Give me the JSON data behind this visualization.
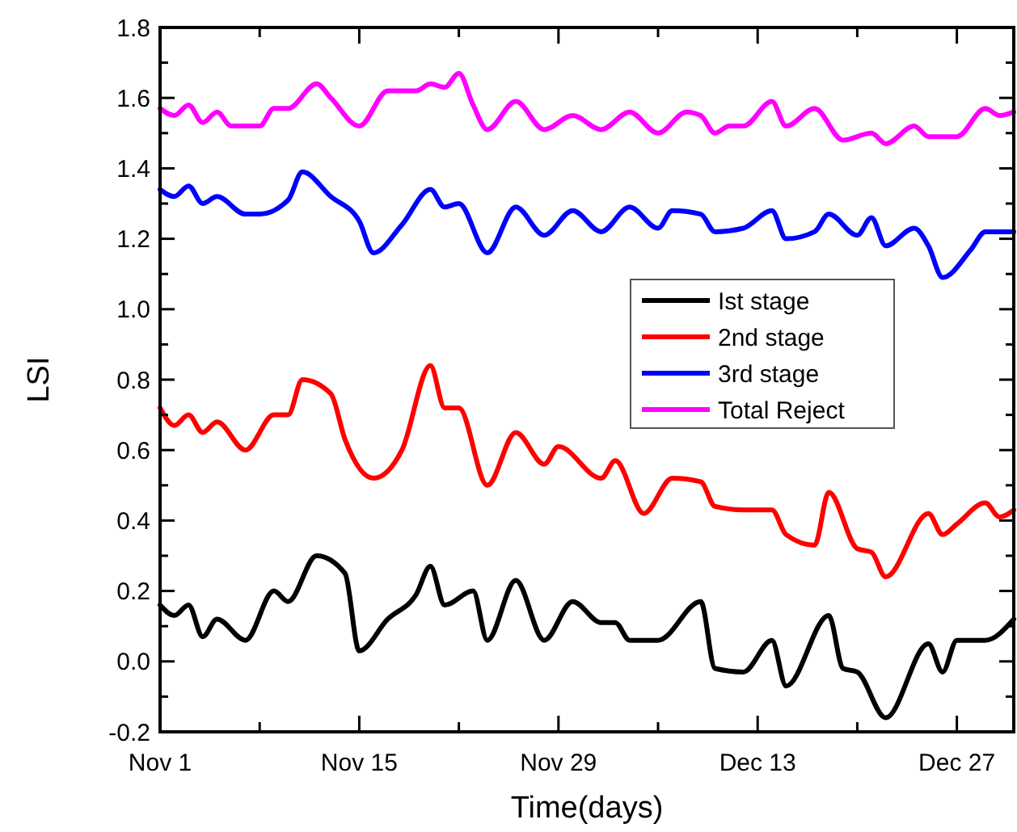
{
  "chart_data": {
    "type": "line",
    "xlabel": "Time(days)",
    "ylabel": "LSI",
    "xlim": [
      "--11-01",
      "--12-31"
    ],
    "xticks": [
      {
        "value": "--11-01",
        "label": "Nov 1"
      },
      {
        "value": "--11-08",
        "label": null
      },
      {
        "value": "--11-15",
        "label": "Nov 15"
      },
      {
        "value": "--11-22",
        "label": null
      },
      {
        "value": "--11-29",
        "label": "Nov 29"
      },
      {
        "value": "--12-06",
        "label": null
      },
      {
        "value": "--12-13",
        "label": "Dec 13"
      },
      {
        "value": "--12-20",
        "label": null
      },
      {
        "value": "--12-27",
        "label": "Dec 27"
      }
    ],
    "ylim": [
      -0.2,
      1.8
    ],
    "yticks": [
      {
        "value": -0.2,
        "label": "-0.2"
      },
      {
        "value": -0.1,
        "label": null
      },
      {
        "value": 0,
        "label": "0.0"
      },
      {
        "value": 0.1,
        "label": null
      },
      {
        "value": 0.2,
        "label": "0.2"
      },
      {
        "value": 0.3,
        "label": null
      },
      {
        "value": 0.4,
        "label": "0.4"
      },
      {
        "value": 0.5,
        "label": null
      },
      {
        "value": 0.6,
        "label": "0.6"
      },
      {
        "value": 0.7,
        "label": null
      },
      {
        "value": 0.8,
        "label": "0.8"
      },
      {
        "value": 0.9,
        "label": null
      },
      {
        "value": 1.0,
        "label": "1.0"
      },
      {
        "value": 1.1,
        "label": null
      },
      {
        "value": 1.2,
        "label": "1.2"
      },
      {
        "value": 1.3,
        "label": null
      },
      {
        "value": 1.4,
        "label": "1.4"
      },
      {
        "value": 1.5,
        "label": null
      },
      {
        "value": 1.6,
        "label": "1.6"
      },
      {
        "value": 1.7,
        "label": null
      },
      {
        "value": 1.8,
        "label": "1.8"
      }
    ],
    "grid": false,
    "legend": "right",
    "marker": "none",
    "line_style": "solid",
    "series": [
      {
        "name": "Ist stage",
        "color": "#000000",
        "x": [
          "--11-01",
          "--11-02",
          "--11-03",
          "--11-04",
          "--11-05",
          "--11-07",
          "--11-09",
          "--11-10",
          "--11-12",
          "--11-14",
          "--11-15",
          "--11-17",
          "--11-19",
          "--11-20",
          "--11-21",
          "--11-23",
          "--11-24",
          "--11-26",
          "--11-28",
          "--11-30",
          "--12-02",
          "--12-03",
          "--12-04",
          "--12-06",
          "--12-09",
          "--12-10",
          "--12-12",
          "--12-14",
          "--12-15",
          "--12-18",
          "--12-19",
          "--12-20",
          "--12-22",
          "--12-25",
          "--12-26",
          "--12-27",
          "--12-29",
          "--12-31"
        ],
        "values": [
          0.16,
          0.13,
          0.16,
          0.07,
          0.12,
          0.06,
          0.2,
          0.17,
          0.3,
          0.25,
          0.03,
          0.12,
          0.19,
          0.27,
          0.16,
          0.2,
          0.06,
          0.23,
          0.06,
          0.17,
          0.11,
          0.11,
          0.06,
          0.06,
          0.17,
          -0.02,
          -0.03,
          0.06,
          -0.07,
          0.13,
          -0.02,
          -0.03,
          -0.16,
          0.05,
          -0.03,
          0.06,
          0.06,
          0.12
        ]
      },
      {
        "name": "2nd stage",
        "color": "#ff0000",
        "x": [
          "--11-01",
          "--11-02",
          "--11-03",
          "--11-04",
          "--11-05",
          "--11-07",
          "--11-09",
          "--11-10",
          "--11-11",
          "--11-13",
          "--11-14",
          "--11-16",
          "--11-18",
          "--11-20",
          "--11-21",
          "--11-22",
          "--11-24",
          "--11-26",
          "--11-28",
          "--11-29",
          "--12-02",
          "--12-03",
          "--12-05",
          "--12-07",
          "--12-09",
          "--12-10",
          "--12-12",
          "--12-14",
          "--12-15",
          "--12-17",
          "--12-18",
          "--12-20",
          "--12-21",
          "--12-22",
          "--12-25",
          "--12-26",
          "--12-27",
          "--12-29",
          "--12-30",
          "--12-31"
        ],
        "values": [
          0.72,
          0.67,
          0.7,
          0.65,
          0.68,
          0.6,
          0.7,
          0.7,
          0.8,
          0.76,
          0.63,
          0.52,
          0.6,
          0.84,
          0.72,
          0.72,
          0.5,
          0.65,
          0.56,
          0.61,
          0.52,
          0.57,
          0.42,
          0.52,
          0.51,
          0.44,
          0.43,
          0.43,
          0.36,
          0.33,
          0.48,
          0.32,
          0.31,
          0.24,
          0.42,
          0.36,
          0.39,
          0.45,
          0.41,
          0.43
        ]
      },
      {
        "name": "3rd stage",
        "color": "#0000ff",
        "x": [
          "--11-01",
          "--11-02",
          "--11-03",
          "--11-04",
          "--11-05",
          "--11-07",
          "--11-08",
          "--11-10",
          "--11-11",
          "--11-13",
          "--11-15",
          "--11-16",
          "--11-18",
          "--11-20",
          "--11-21",
          "--11-22",
          "--11-24",
          "--11-26",
          "--11-28",
          "--11-30",
          "--12-02",
          "--12-04",
          "--12-06",
          "--12-07",
          "--12-09",
          "--12-10",
          "--12-12",
          "--12-14",
          "--12-15",
          "--12-17",
          "--12-18",
          "--12-20",
          "--12-21",
          "--12-22",
          "--12-24",
          "--12-25",
          "--12-26",
          "--12-28",
          "--12-29",
          "--12-31"
        ],
        "values": [
          1.34,
          1.32,
          1.35,
          1.3,
          1.32,
          1.27,
          1.27,
          1.31,
          1.39,
          1.32,
          1.25,
          1.16,
          1.24,
          1.34,
          1.29,
          1.3,
          1.16,
          1.29,
          1.21,
          1.28,
          1.22,
          1.29,
          1.23,
          1.28,
          1.27,
          1.22,
          1.23,
          1.28,
          1.2,
          1.22,
          1.27,
          1.21,
          1.26,
          1.18,
          1.23,
          1.18,
          1.09,
          1.17,
          1.22,
          1.22
        ]
      },
      {
        "name": "Total Reject",
        "color": "#ff00ff",
        "x": [
          "--11-01",
          "--11-02",
          "--11-03",
          "--11-04",
          "--11-05",
          "--11-06",
          "--11-08",
          "--11-09",
          "--11-10",
          "--11-12",
          "--11-13",
          "--11-15",
          "--11-17",
          "--11-19",
          "--11-20",
          "--11-21",
          "--11-22",
          "--11-23",
          "--11-24",
          "--11-26",
          "--11-28",
          "--11-30",
          "--12-02",
          "--12-04",
          "--12-06",
          "--12-08",
          "--12-09",
          "--12-10",
          "--12-11",
          "--12-12",
          "--12-14",
          "--12-15",
          "--12-17",
          "--12-19",
          "--12-21",
          "--12-22",
          "--12-24",
          "--12-25",
          "--12-27",
          "--12-29",
          "--12-30",
          "--12-31"
        ],
        "values": [
          1.57,
          1.55,
          1.58,
          1.53,
          1.56,
          1.52,
          1.52,
          1.57,
          1.57,
          1.64,
          1.6,
          1.52,
          1.62,
          1.62,
          1.64,
          1.63,
          1.67,
          1.58,
          1.51,
          1.59,
          1.51,
          1.55,
          1.51,
          1.56,
          1.5,
          1.56,
          1.55,
          1.5,
          1.52,
          1.52,
          1.59,
          1.52,
          1.57,
          1.48,
          1.5,
          1.47,
          1.52,
          1.49,
          1.49,
          1.57,
          1.55,
          1.56
        ]
      }
    ]
  }
}
